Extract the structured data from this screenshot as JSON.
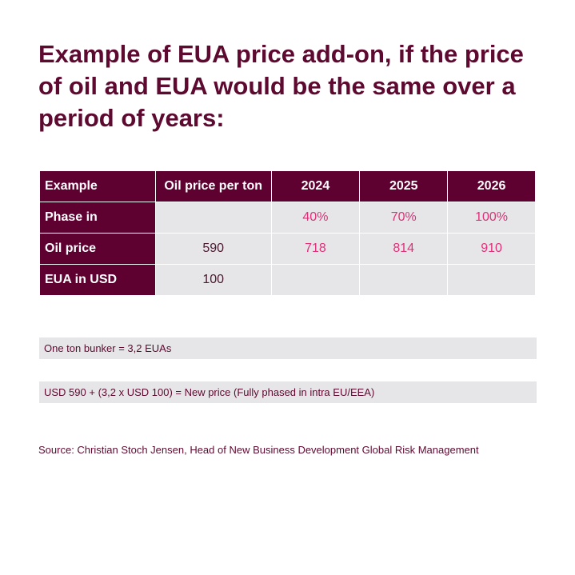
{
  "title": "Example of EUA price add-on, if the price of oil and EUA would be the same over a period of years:",
  "table": {
    "headers": [
      "Example",
      "Oil price per ton",
      "2024",
      "2025",
      "2026"
    ],
    "rows": [
      {
        "label": "Phase in",
        "cells": [
          "",
          "40%",
          "70%",
          "100%"
        ]
      },
      {
        "label": "Oil price",
        "cells": [
          "590",
          "718",
          "814",
          "910"
        ]
      },
      {
        "label": "EUA in USD",
        "cells": [
          "100",
          "",
          "",
          ""
        ]
      }
    ]
  },
  "notes": [
    "One ton bunker = 3,2 EUAs",
    "USD 590 + (3,2 x USD 100) = New price (Fully phased in intra EU/EEA)"
  ],
  "source": "Source: Christian Stoch Jensen, Head of New Business Development Global Risk Management",
  "colors": {
    "brand": "#5e0030",
    "highlight": "#e0307a",
    "cell_bg": "#e6e6e8"
  }
}
